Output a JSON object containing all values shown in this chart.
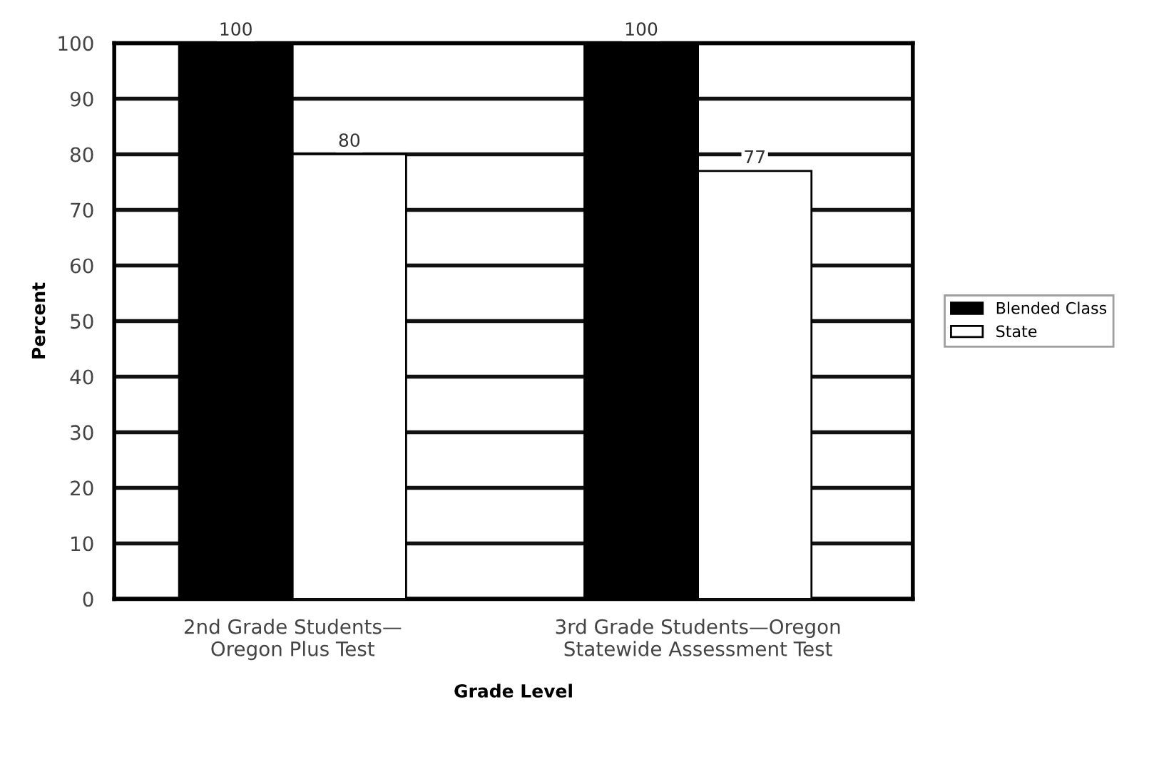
{
  "chart_data": {
    "type": "bar",
    "xlabel": "Grade Level",
    "ylabel": "Percent",
    "categories": [
      "2nd Grade Students—\nOregon Plus Test",
      "3rd Grade Students—Oregon\nStatewide Assessment Test"
    ],
    "series": [
      {
        "name": "Blended Class",
        "color": "#000000",
        "values": [
          100,
          100
        ]
      },
      {
        "name": "State",
        "color": "#ffffff",
        "values": [
          80,
          77
        ]
      }
    ],
    "ylim": [
      0,
      100
    ],
    "yticks": [
      0,
      10,
      20,
      30,
      40,
      50,
      60,
      70,
      80,
      90,
      100
    ],
    "grid": "y",
    "legend": "right",
    "data_labels": true
  }
}
